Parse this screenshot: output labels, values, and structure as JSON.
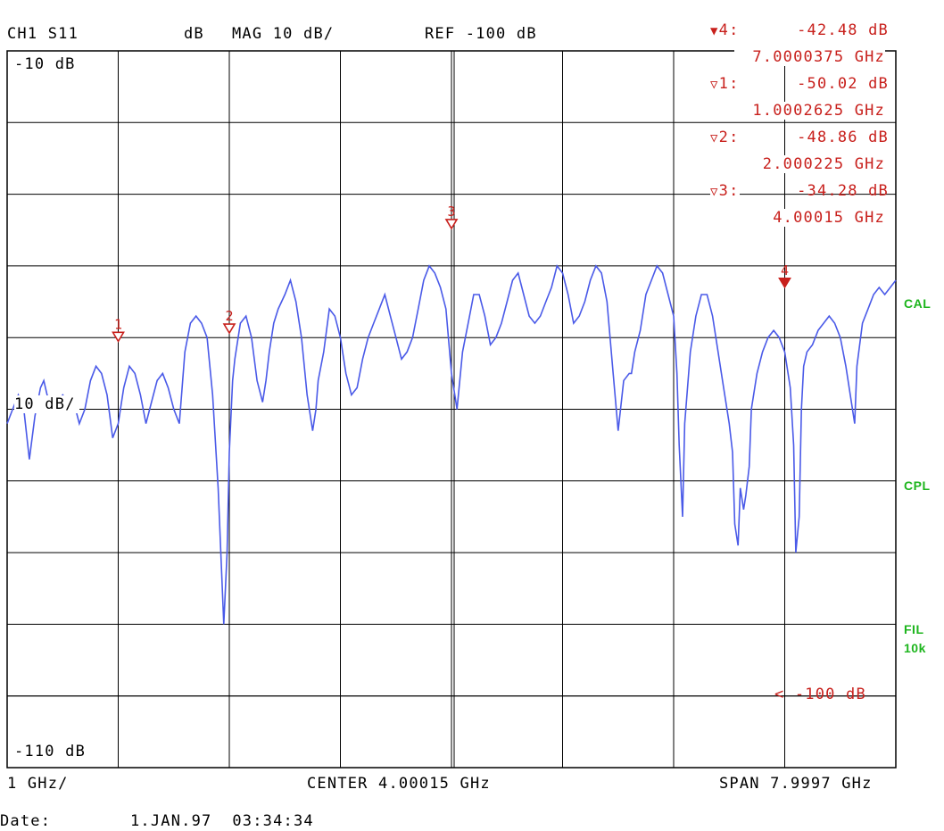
{
  "header": {
    "channel": "CH1 S11",
    "unit": "dB",
    "format": "MAG 10 dB/",
    "ref": "REF -100 dB"
  },
  "markers_readout": [
    {
      "id": "4",
      "label": "4:",
      "value": "-42.48 dB",
      "freq": "7.0000375 GHz",
      "active": true
    },
    {
      "id": "1",
      "label": "1:",
      "value": "-50.02 dB",
      "freq": "1.0002625 GHz",
      "active": false
    },
    {
      "id": "2",
      "label": "2:",
      "value": "-48.86 dB",
      "freq": "2.000225 GHz",
      "active": false
    },
    {
      "id": "3",
      "label": "3:",
      "value": "-34.28 dB",
      "freq": "4.00015 GHz",
      "active": false
    }
  ],
  "side_labels": {
    "cal": "CAL",
    "cpl": "CPL",
    "fil": "FIL",
    "fil_value": "10k"
  },
  "grid_labels": {
    "top": "-10 dB",
    "scale": "10 dB/",
    "bottom": "-110 dB",
    "ref_level": "-100 dB"
  },
  "footer": {
    "x_scale": "1 GHz/",
    "center": "CENTER 4.00015 GHz",
    "span": "SPAN 7.9997 GHz",
    "date_label": "Date:",
    "date_value": "1.JAN.97  03:34:34"
  },
  "colors": {
    "trace": "#4a5ae8",
    "marker": "#c8201c",
    "status": "#1db51d",
    "grid": "#000000"
  },
  "chart_data": {
    "type": "line",
    "title": "CH1 S11",
    "xlabel": "",
    "ylabel": "",
    "x_unit": "GHz",
    "y_unit": "dB",
    "xlim": [
      0.0,
      8.0
    ],
    "ylim": [
      -110,
      -10
    ],
    "grid": true,
    "series": [
      {
        "x": [
          0.0,
          0.05,
          0.1,
          0.15,
          0.2,
          0.25,
          0.3,
          0.33,
          0.36,
          0.4,
          0.45,
          0.5,
          0.55,
          0.6,
          0.65,
          0.7,
          0.75,
          0.8,
          0.85,
          0.9,
          0.95,
          1.0,
          1.05,
          1.1,
          1.15,
          1.2,
          1.25,
          1.3,
          1.35,
          1.4,
          1.45,
          1.5,
          1.55,
          1.6,
          1.65,
          1.7,
          1.75,
          1.8,
          1.85,
          1.9,
          1.95,
          1.98,
          2.0,
          2.03,
          2.05,
          2.1,
          2.15,
          2.2,
          2.25,
          2.3,
          2.33,
          2.36,
          2.38,
          2.4,
          2.44,
          2.5,
          2.55,
          2.6,
          2.65,
          2.7,
          2.75,
          2.78,
          2.8,
          2.85,
          2.9,
          2.95,
          3.0,
          3.05,
          3.1,
          3.15,
          3.2,
          3.25,
          3.3,
          3.35,
          3.4,
          3.45,
          3.5,
          3.55,
          3.6,
          3.65,
          3.7,
          3.75,
          3.8,
          3.85,
          3.9,
          3.95,
          4.0,
          4.05,
          4.1,
          4.15,
          4.2,
          4.25,
          4.3,
          4.35,
          4.4,
          4.45,
          4.5,
          4.55,
          4.6,
          4.65,
          4.7,
          4.75,
          4.8,
          4.85,
          4.9,
          4.95,
          5.0,
          5.05,
          5.1,
          5.15,
          5.2,
          5.25,
          5.3,
          5.35,
          5.4,
          5.45,
          5.5,
          5.55,
          5.6,
          5.62,
          5.65,
          5.7,
          5.75,
          5.8,
          5.85,
          5.9,
          5.95,
          6.0,
          6.03,
          6.05,
          6.08,
          6.1,
          6.15,
          6.2,
          6.25,
          6.3,
          6.35,
          6.4,
          6.45,
          6.5,
          6.53,
          6.55,
          6.58,
          6.6,
          6.63,
          6.65,
          6.68,
          6.7,
          6.75,
          6.8,
          6.85,
          6.9,
          6.95,
          7.0,
          7.05,
          7.08,
          7.1,
          7.13,
          7.15,
          7.17,
          7.2,
          7.25,
          7.3,
          7.35,
          7.4,
          7.45,
          7.5,
          7.55,
          7.6,
          7.63,
          7.65,
          7.7,
          7.75,
          7.8,
          7.85,
          7.9,
          7.95,
          8.0
        ],
        "values": [
          -62,
          -60,
          -58,
          -60,
          -67,
          -61,
          -57,
          -56,
          -58,
          -60,
          -59,
          -58,
          -59,
          -59,
          -62,
          -60,
          -56,
          -54,
          -55,
          -58,
          -64,
          -62,
          -57,
          -54,
          -55,
          -58,
          -62,
          -59,
          -56,
          -55,
          -57,
          -60,
          -62,
          -52,
          -48,
          -47,
          -48,
          -50,
          -58,
          -71,
          -90,
          -80,
          -66,
          -56,
          -53,
          -48,
          -47,
          -50,
          -56,
          -59,
          -56,
          -52,
          -50,
          -48,
          -46,
          -44,
          -42,
          -45,
          -50,
          -58,
          -63,
          -60,
          -56,
          -52,
          -46,
          -47,
          -50,
          -55,
          -58,
          -57,
          -53,
          -50,
          -48,
          -46,
          -44,
          -47,
          -50,
          -53,
          -52,
          -50,
          -46,
          -42,
          -40,
          -41,
          -43,
          -46,
          -55,
          -60,
          -52,
          -48,
          -44,
          -44,
          -47,
          -51,
          -50,
          -48,
          -45,
          -42,
          -41,
          -44,
          -47,
          -48,
          -47,
          -45,
          -43,
          -40,
          -41,
          -44,
          -48,
          -47,
          -45,
          -42,
          -40,
          -41,
          -45,
          -54,
          -63,
          -56,
          -55,
          -55,
          -52,
          -49,
          -44,
          -42,
          -40,
          -41,
          -44,
          -47,
          -55,
          -65,
          -75,
          -62,
          -52,
          -47,
          -44,
          -44,
          -47,
          -52,
          -57,
          -62,
          -66,
          -76,
          -79,
          -71,
          -74,
          -72,
          -68,
          -60,
          -55,
          -52,
          -50,
          -49,
          -50,
          -52,
          -57,
          -65,
          -80,
          -75,
          -60,
          -54,
          -52,
          -51,
          -49,
          -48,
          -47,
          -48,
          -50,
          -54,
          -59,
          -62,
          -54,
          -48,
          -46,
          -44,
          -43,
          -44,
          -43,
          -42
        ],
        "name": ""
      }
    ],
    "markers": [
      {
        "id": "1",
        "x": 1.0002625,
        "y": -50.02
      },
      {
        "id": "2",
        "x": 2.000225,
        "y": -48.86
      },
      {
        "id": "3",
        "x": 4.00015,
        "y": -34.28
      },
      {
        "id": "4",
        "x": 7.0000375,
        "y": -42.48
      }
    ],
    "ref_level": -100
  }
}
